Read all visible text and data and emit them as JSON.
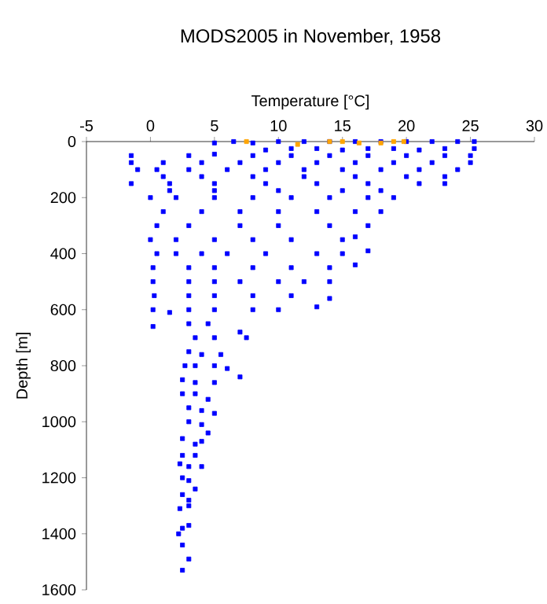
{
  "chart_data": {
    "type": "scatter",
    "title": "MODS2005 in November, 1958",
    "xlabel": "Temperature [°C]",
    "ylabel": "Depth [m]",
    "xlim": [
      -5,
      30
    ],
    "xticks": [
      -5,
      0,
      5,
      10,
      15,
      20,
      25,
      30
    ],
    "ylim": [
      1600,
      0
    ],
    "yticks": [
      0,
      200,
      400,
      600,
      800,
      1000,
      1200,
      1400,
      1600
    ],
    "marker": "square",
    "series": [
      {
        "color": "#0000ff",
        "x": [
          5,
          6.5,
          8,
          10,
          12,
          14,
          16,
          18,
          20,
          22,
          24,
          25.3,
          9,
          11,
          13,
          15,
          17,
          19,
          21,
          23,
          25.3,
          -1.5,
          3,
          5,
          8,
          11,
          14,
          17,
          20,
          23,
          25,
          -1.5,
          1,
          4,
          7,
          10,
          13,
          16,
          19,
          22,
          25,
          -1,
          0.5,
          3,
          6,
          9,
          12,
          15,
          18,
          21,
          24,
          1,
          4,
          8,
          12,
          16,
          20,
          23,
          -1.5,
          1.5,
          5,
          9,
          13,
          17,
          21,
          23,
          1.5,
          5,
          10,
          15,
          18,
          0,
          2,
          5,
          8,
          11,
          14,
          17,
          19,
          1,
          4,
          7,
          10,
          13,
          16,
          18,
          0.5,
          3,
          7,
          10,
          14,
          17,
          0,
          2,
          5,
          8,
          11,
          15,
          16,
          0.5,
          2,
          4,
          6,
          9,
          13,
          15,
          17,
          0.2,
          3,
          5,
          8,
          11,
          14,
          16,
          0.2,
          3,
          5,
          7,
          10,
          12,
          14,
          0.3,
          3,
          5,
          8,
          11,
          14,
          0.2,
          1.5,
          3,
          5,
          8,
          10,
          13,
          0.2,
          3,
          4.5,
          7,
          3.5,
          5,
          7.5,
          3,
          4,
          5.5,
          2.7,
          3.5,
          5,
          6,
          7,
          2.5,
          3.5,
          5,
          2.5,
          3.5,
          4.5,
          3,
          4,
          5,
          3,
          4,
          4.5,
          2.5,
          3.5,
          4,
          2.5,
          3.5,
          2.3,
          3,
          4,
          2.5,
          3,
          3.5,
          2.5,
          3,
          2.3,
          3,
          2.5,
          3,
          2.2,
          2.5,
          3,
          2.5
        ],
        "values": [
          5,
          0,
          5,
          0,
          0,
          0,
          0,
          0,
          0,
          0,
          0,
          0,
          30,
          25,
          25,
          30,
          25,
          25,
          30,
          25,
          25,
          50,
          50,
          45,
          50,
          50,
          50,
          50,
          50,
          50,
          50,
          75,
          75,
          75,
          75,
          75,
          75,
          75,
          75,
          75,
          75,
          100,
          100,
          100,
          100,
          100,
          100,
          100,
          100,
          100,
          100,
          125,
          125,
          125,
          125,
          125,
          125,
          125,
          150,
          150,
          150,
          150,
          150,
          150,
          150,
          150,
          175,
          175,
          175,
          175,
          175,
          200,
          200,
          200,
          200,
          200,
          200,
          200,
          200,
          250,
          250,
          250,
          250,
          250,
          250,
          250,
          300,
          300,
          300,
          300,
          300,
          300,
          350,
          350,
          350,
          350,
          350,
          350,
          340,
          400,
          400,
          400,
          400,
          400,
          400,
          400,
          390,
          450,
          450,
          450,
          450,
          450,
          450,
          440,
          500,
          500,
          500,
          500,
          500,
          500,
          500,
          550,
          550,
          550,
          550,
          550,
          560,
          600,
          610,
          600,
          600,
          600,
          600,
          590,
          660,
          650,
          650,
          680,
          700,
          700,
          700,
          750,
          760,
          760,
          800,
          800,
          800,
          810,
          840,
          850,
          860,
          860,
          900,
          900,
          920,
          950,
          960,
          970,
          1000,
          1010,
          1040,
          1060,
          1080,
          1070,
          1120,
          1120,
          1150,
          1160,
          1160,
          1200,
          1210,
          1240,
          1260,
          1280,
          1310,
          1300,
          1380,
          1370,
          1400,
          1440,
          1490,
          1530
        ]
      },
      {
        "color": "#ffa500",
        "x": [
          7.5,
          11.5,
          14,
          15,
          16.3,
          18,
          19,
          19.8
        ],
        "values": [
          0,
          10,
          0,
          0,
          5,
          5,
          0,
          0
        ]
      }
    ]
  }
}
